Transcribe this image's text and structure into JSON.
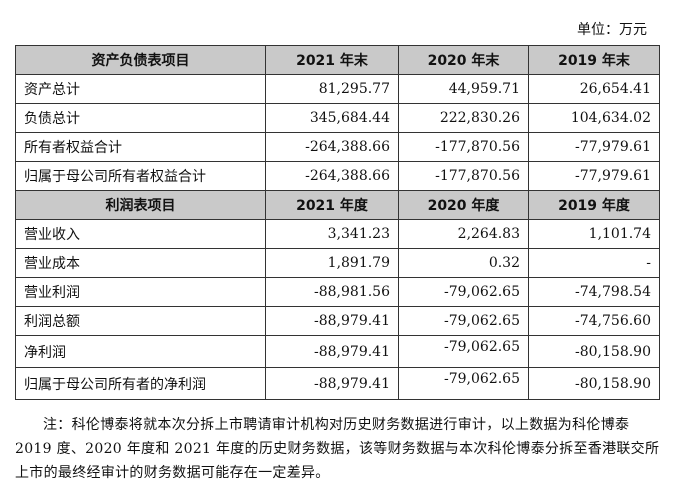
{
  "unit_label": "单位：万元",
  "balance_sheet": {
    "header": [
      "资产负债表项目",
      "2021 年末",
      "2020 年末",
      "2019 年末"
    ],
    "rows": [
      {
        "label": "资产总计",
        "values": [
          "81,295.77",
          "44,959.71",
          "26,654.41"
        ]
      },
      {
        "label": "负债总计",
        "values": [
          "345,684.44",
          "222,830.26",
          "104,634.02"
        ]
      },
      {
        "label": "所有者权益合计",
        "values": [
          "-264,388.66",
          "-177,870.56",
          "-77,979.61"
        ]
      },
      {
        "label": "归属于母公司所有者权益合计",
        "values": [
          "-264,388.66",
          "-177,870.56",
          "-77,979.61"
        ]
      }
    ]
  },
  "income_statement": {
    "header": [
      "利润表项目",
      "2021 年度",
      "2020 年度",
      "2019 年度"
    ],
    "rows": [
      {
        "label": "营业收入",
        "values": [
          "3,341.23",
          "2,264.83",
          "1,101.74"
        ]
      },
      {
        "label": "营业成本",
        "values": [
          "1,891.79",
          "0.32",
          "-"
        ]
      },
      {
        "label": "营业利润",
        "values": [
          "-88,981.56",
          "-79,062.65",
          "-74,798.54"
        ]
      },
      {
        "label": "利润总额",
        "values": [
          "-88,979.41",
          "-79,062.65",
          "-74,756.60"
        ]
      },
      {
        "label": "净利润",
        "values": [
          "-88,979.41",
          "-79,062.65",
          "-80,158.90"
        ]
      },
      {
        "label": "归属于母公司所有者的净利润",
        "values": [
          "-88,979.41",
          "-79,062.65",
          "-80,158.90"
        ]
      }
    ]
  },
  "footnote": "注：科伦博泰将就本次分拆上市聘请审计机构对历史财务数据进行审计，以上数据为科伦博泰 2019 度、2020 年度和 2021 年度的历史财务数据，该等财务数据与本次科伦博泰分拆至香港联交所上市的最终经审计的财务数据可能存在一定差异。"
}
